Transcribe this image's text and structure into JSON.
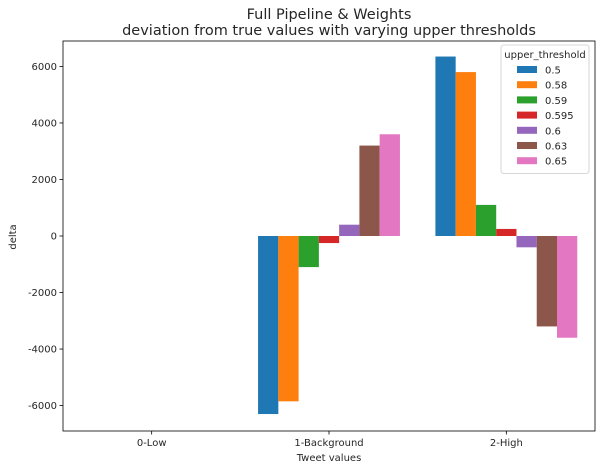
{
  "chart_data": {
    "type": "bar",
    "title": "Full Pipeline & Weights",
    "subtitle": "deviation from true values with varying upper thresholds",
    "xlabel": "Tweet values",
    "ylabel": "delta",
    "categories": [
      "0-Low",
      "1-Background",
      "2-High"
    ],
    "ylim": [
      -6900,
      6900
    ],
    "yticks": [
      -6000,
      -4000,
      -2000,
      0,
      2000,
      4000,
      6000
    ],
    "grid": false,
    "legend": {
      "title": "upper_threshold",
      "placement": "top-right"
    },
    "series": [
      {
        "name": "0.5",
        "color": "#1f77b4",
        "values": [
          0,
          -6300,
          6350
        ]
      },
      {
        "name": "0.58",
        "color": "#ff7f0e",
        "values": [
          0,
          -5850,
          5800
        ]
      },
      {
        "name": "0.59",
        "color": "#2ca02c",
        "values": [
          0,
          -1100,
          1100
        ]
      },
      {
        "name": "0.595",
        "color": "#d62728",
        "values": [
          0,
          -250,
          250
        ]
      },
      {
        "name": "0.6",
        "color": "#9467bd",
        "values": [
          0,
          400,
          -400
        ]
      },
      {
        "name": "0.63",
        "color": "#8c564b",
        "values": [
          0,
          3200,
          -3200
        ]
      },
      {
        "name": "0.65",
        "color": "#e377c2",
        "values": [
          0,
          3600,
          -3600
        ]
      }
    ]
  }
}
